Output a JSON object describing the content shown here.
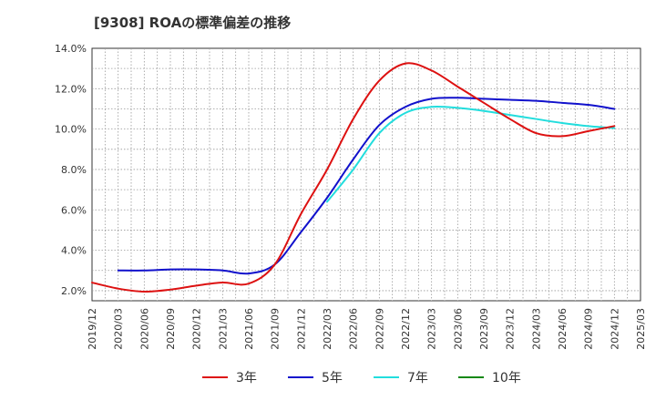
{
  "chart_data": {
    "type": "line",
    "title": "[9308]  ROAの標準偏差の推移",
    "xlabel": "",
    "ylabel": "",
    "x_ticks": [
      "2019/12",
      "2020/03",
      "2020/06",
      "2020/09",
      "2020/12",
      "2021/03",
      "2021/06",
      "2021/09",
      "2021/12",
      "2022/03",
      "2022/06",
      "2022/09",
      "2022/12",
      "2023/03",
      "2023/06",
      "2023/09",
      "2023/12",
      "2024/03",
      "2024/06",
      "2024/09",
      "2024/12",
      "2025/03"
    ],
    "y_ticks": [
      "2.0%",
      "4.0%",
      "6.0%",
      "8.0%",
      "10.0%",
      "12.0%",
      "14.0%"
    ],
    "ylim": [
      1.5,
      14.0
    ],
    "grid": true,
    "legend_position": "bottom",
    "series": [
      {
        "name": "3年",
        "color": "#dd1111",
        "values": [
          2.4,
          2.1,
          1.95,
          2.05,
          2.25,
          2.4,
          2.35,
          3.3,
          5.8,
          8.0,
          10.5,
          12.4,
          13.25,
          12.9,
          12.1,
          11.3,
          10.5,
          9.8,
          9.65,
          9.9,
          10.15,
          null
        ]
      },
      {
        "name": "5年",
        "color": "#1111cc",
        "values": [
          null,
          3.0,
          3.0,
          3.05,
          3.05,
          3.0,
          2.85,
          3.3,
          4.9,
          6.6,
          8.5,
          10.2,
          11.1,
          11.5,
          11.55,
          11.5,
          11.45,
          11.4,
          11.3,
          11.2,
          11.0,
          null
        ]
      },
      {
        "name": "7年",
        "color": "#22dddd",
        "values": [
          null,
          null,
          null,
          null,
          null,
          null,
          null,
          null,
          null,
          6.4,
          8.0,
          9.8,
          10.8,
          11.1,
          11.05,
          10.9,
          10.7,
          10.5,
          10.3,
          10.15,
          10.05,
          null
        ]
      },
      {
        "name": "10年",
        "color": "#118811",
        "values": [
          null,
          null,
          null,
          null,
          null,
          null,
          null,
          null,
          null,
          null,
          null,
          null,
          null,
          null,
          null,
          null,
          null,
          null,
          null,
          null,
          null,
          null
        ]
      }
    ]
  }
}
